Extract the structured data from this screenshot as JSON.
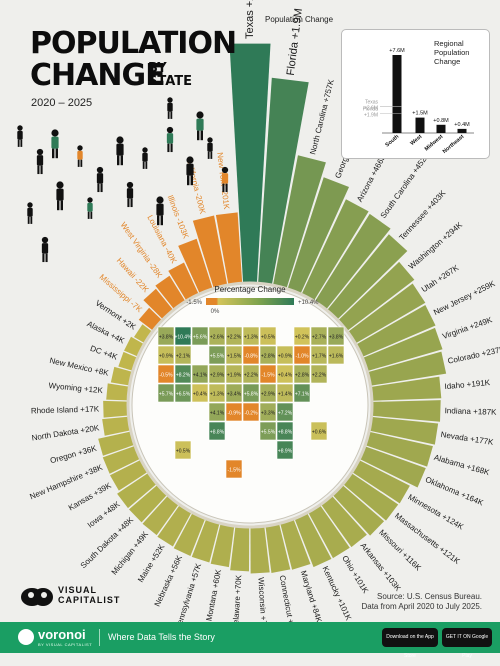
{
  "header": {
    "title_line1": "POPULATION",
    "title_line2": "CHANGE",
    "title_by": "BY STATE",
    "subtitle": "2020 – 2025"
  },
  "legend": {
    "label": "Population Change",
    "map_label": "Percentage Change",
    "min": "-1.5%",
    "zero": "0%",
    "max": "+10.4%"
  },
  "colors": {
    "positive_dark": "#2f7a57",
    "positive_light": "#c6b84c",
    "negative": "#e2862a",
    "accent_green": "#1a9e63"
  },
  "chart_data": {
    "type": "bar",
    "title": "Population Change by State",
    "subtitle": "2020 – 2025",
    "unit": "people",
    "states": [
      {
        "name": "Texas",
        "label": "+2.6M",
        "value": 2600000
      },
      {
        "name": "Florida",
        "label": "+1.9M",
        "value": 1900000
      },
      {
        "name": "North Carolina",
        "label": "+757K",
        "value": 757000
      },
      {
        "name": "Georgia",
        "label": "+589K",
        "value": 589000
      },
      {
        "name": "Arizona",
        "label": "+466K",
        "value": 466000
      },
      {
        "name": "South Carolina",
        "label": "+452K",
        "value": 452000
      },
      {
        "name": "Tennessee",
        "label": "+403K",
        "value": 403000
      },
      {
        "name": "Washington",
        "label": "+294K",
        "value": 294000
      },
      {
        "name": "Utah",
        "label": "+267K",
        "value": 267000
      },
      {
        "name": "New Jersey",
        "label": "+259K",
        "value": 259000
      },
      {
        "name": "Virginia",
        "label": "+249K",
        "value": 249000
      },
      {
        "name": "Colorado",
        "label": "+237K",
        "value": 237000
      },
      {
        "name": "Idaho",
        "label": "+191K",
        "value": 191000
      },
      {
        "name": "Indiana",
        "label": "+187K",
        "value": 187000
      },
      {
        "name": "Nevada",
        "label": "+177K",
        "value": 177000
      },
      {
        "name": "Alabama",
        "label": "+168K",
        "value": 168000
      },
      {
        "name": "Oklahoma",
        "label": "+164K",
        "value": 164000
      },
      {
        "name": "Minnesota",
        "label": "+124K",
        "value": 124000
      },
      {
        "name": "Massachusetts",
        "label": "+121K",
        "value": 121000
      },
      {
        "name": "Missouri",
        "label": "+116K",
        "value": 116000
      },
      {
        "name": "Arkansas",
        "label": "+103K",
        "value": 103000
      },
      {
        "name": "Ohio",
        "label": "+101K",
        "value": 101000
      },
      {
        "name": "Kentucky",
        "label": "+101K",
        "value": 101000
      },
      {
        "name": "Maryland",
        "label": "+84K",
        "value": 84000
      },
      {
        "name": "Connecticut",
        "label": "+81K",
        "value": 81000
      },
      {
        "name": "Wisconsin",
        "label": "+78K",
        "value": 78000
      },
      {
        "name": "Delaware",
        "label": "+70K",
        "value": 70000
      },
      {
        "name": "Montana",
        "label": "+60K",
        "value": 60000
      },
      {
        "name": "Pennsylvania",
        "label": "+57K",
        "value": 57000
      },
      {
        "name": "Nebraska",
        "label": "+56K",
        "value": 56000
      },
      {
        "name": "Maine",
        "label": "+52K",
        "value": 52000
      },
      {
        "name": "Michigan",
        "label": "+49K",
        "value": 49000
      },
      {
        "name": "South Dakota",
        "label": "+48K",
        "value": 48000
      },
      {
        "name": "Iowa",
        "label": "+48K",
        "value": 48000
      },
      {
        "name": "Kansas",
        "label": "+39K",
        "value": 39000
      },
      {
        "name": "New Hampshire",
        "label": "+38K",
        "value": 38000
      },
      {
        "name": "Oregon",
        "label": "+36K",
        "value": 36000
      },
      {
        "name": "North Dakota",
        "label": "+20K",
        "value": 20000
      },
      {
        "name": "Rhode Island",
        "label": "+17K",
        "value": 17000
      },
      {
        "name": "Wyoming",
        "label": "+12K",
        "value": 12000
      },
      {
        "name": "New Mexico",
        "label": "+8K",
        "value": 8000
      },
      {
        "name": "DC",
        "label": "+4K",
        "value": 4000
      },
      {
        "name": "Alaska",
        "label": "+4K",
        "value": 4000
      },
      {
        "name": "Vermont",
        "label": "+2K",
        "value": 2000
      },
      {
        "name": "Mississippi",
        "label": "-7K",
        "value": -7000
      },
      {
        "name": "Hawaii",
        "label": "-22K",
        "value": -22000
      },
      {
        "name": "West Virginia",
        "label": "-28K",
        "value": -28000
      },
      {
        "name": "Louisiana",
        "label": "-40K",
        "value": -40000
      },
      {
        "name": "Illinois",
        "label": "-103K",
        "value": -103000
      },
      {
        "name": "California",
        "label": "-200K",
        "value": -200000
      },
      {
        "name": "New York",
        "label": "-201K",
        "value": -201000
      }
    ],
    "regional": {
      "title": "Regional Population Change",
      "categories": [
        "South",
        "West",
        "Midwest",
        "Northeast"
      ],
      "values": [
        7600000,
        1500000,
        800000,
        400000
      ],
      "labels": [
        "+7.6M",
        "+1.5M",
        "+0.8M",
        "+0.4M"
      ],
      "reference_labels": [
        "Florida +1.9M",
        "Texas +2.6M"
      ]
    },
    "map_values": [
      {
        "state": "WA",
        "label": "+3.8%"
      },
      {
        "state": "OR",
        "label": "+0.9%"
      },
      {
        "state": "ID",
        "label": "+10.4%"
      },
      {
        "state": "MT",
        "label": "+5.6%"
      },
      {
        "state": "WY",
        "label": "+2.1%"
      },
      {
        "state": "ND",
        "label": "+2.6%"
      },
      {
        "state": "SD",
        "label": "+5.5%"
      },
      {
        "state": "NE",
        "label": "+2.9%"
      },
      {
        "state": "MN",
        "label": "+2.2%"
      },
      {
        "state": "WI",
        "label": "+1.3%"
      },
      {
        "state": "MI",
        "label": "+0.5%"
      },
      {
        "state": "NV",
        "label": "+5.7%"
      },
      {
        "state": "UT",
        "label": "+8.2%"
      },
      {
        "state": "CO",
        "label": "+4.1%"
      },
      {
        "state": "KS",
        "label": "+1.3%"
      },
      {
        "state": "IA",
        "label": "+1.5%"
      },
      {
        "state": "IL",
        "label": "-0.8%"
      },
      {
        "state": "IN",
        "label": "+2.8%"
      },
      {
        "state": "OH",
        "label": "+0.9%"
      },
      {
        "state": "PA",
        "label": "+0.4%"
      },
      {
        "state": "NY",
        "label": "-1.0%"
      },
      {
        "state": "ME",
        "label": "+3.8%"
      },
      {
        "state": "VT",
        "label": "+0.2%"
      },
      {
        "state": "NH",
        "label": "+2.7%"
      },
      {
        "state": "MA",
        "label": "+1.7%"
      },
      {
        "state": "RI",
        "label": "+1.6%"
      },
      {
        "state": "CT",
        "label": "+2.2%"
      },
      {
        "state": "NJ",
        "label": "+2.8%"
      },
      {
        "state": "DE",
        "label": "+7.1%"
      },
      {
        "state": "MD",
        "label": "+1.4%"
      },
      {
        "state": "CA",
        "label": "-0.5%"
      },
      {
        "state": "AZ",
        "label": "+6.5%"
      },
      {
        "state": "NM",
        "label": "+0.4%"
      },
      {
        "state": "OK",
        "label": "+4.1%"
      },
      {
        "state": "TX",
        "label": "+8.8%"
      },
      {
        "state": "MO",
        "label": "+1.9%"
      },
      {
        "state": "AR",
        "label": "+3.4%"
      },
      {
        "state": "LA",
        "label": "-0.9%"
      },
      {
        "state": "MS",
        "label": "-0.2%"
      },
      {
        "state": "AL",
        "label": "+3.3%"
      },
      {
        "state": "TN",
        "label": "+5.8%"
      },
      {
        "state": "KY",
        "label": "+2.2%"
      },
      {
        "state": "WV",
        "label": "-1.5%"
      },
      {
        "state": "VA",
        "label": "+2.9%"
      },
      {
        "state": "NC",
        "label": "+7.2%"
      },
      {
        "state": "SC",
        "label": "+8.8%"
      },
      {
        "state": "GA",
        "label": "+5.5%"
      },
      {
        "state": "FL",
        "label": "+8.9%"
      },
      {
        "state": "AK",
        "label": "+0.5%"
      },
      {
        "state": "HI",
        "label": "-1.5%"
      },
      {
        "state": "DC",
        "label": "+0.6%"
      }
    ]
  },
  "branding": {
    "vc_line1": "VISUAL",
    "vc_line2": "CAPITALIST",
    "source_line1": "Source: U.S. Census Bureau.",
    "source_line2": "Data from April 2020 to July 2025.",
    "voronoi": "voronoi",
    "voronoi_sub": "BY VISUAL CAPITALIST",
    "tagline": "Where Data Tells the Story",
    "app_store": "Download on the App Store",
    "google_play": "GET IT ON Google Play"
  }
}
